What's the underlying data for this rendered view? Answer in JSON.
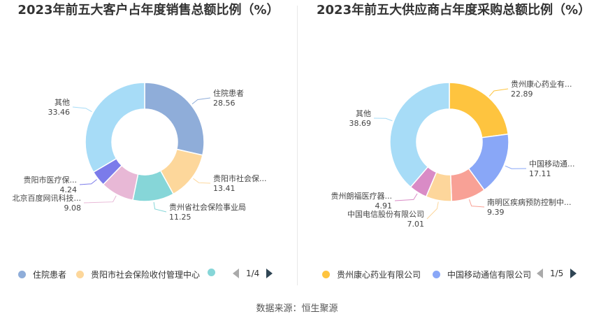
{
  "source_text": "数据来源：恒生聚源",
  "chart_data": [
    {
      "type": "pie",
      "title": "2023年前五大客户占年度销售总额比例（%）",
      "slices": [
        {
          "label": "住院患者",
          "value": 28.56,
          "color": "#8fadd9"
        },
        {
          "label": "贵阳市社会保...",
          "value": 13.41,
          "color": "#fdd79b"
        },
        {
          "label": "贵州省社会保险事业局",
          "value": 11.25,
          "color": "#86d6d8"
        },
        {
          "label": "北京百度网讯科技...",
          "value": 9.08,
          "color": "#e8b8d6"
        },
        {
          "label": "贵阳市医疗保...",
          "value": 4.24,
          "color": "#7b7bea"
        },
        {
          "label": "其他",
          "value": 33.46,
          "color": "#a7dcf7"
        }
      ],
      "legend": {
        "items": [
          {
            "label": "住院患者",
            "color": "#8fadd9"
          },
          {
            "label": "贵阳市社会保险收付管理中心",
            "color": "#fdd79b"
          },
          {
            "label": "",
            "color": "#86d6d8"
          }
        ],
        "page": "1/4"
      }
    },
    {
      "type": "pie",
      "title": "2023年前五大供应商占年度采购总额比例（%）",
      "slices": [
        {
          "label": "贵州康心药业有...",
          "value": 22.89,
          "color": "#fec43f"
        },
        {
          "label": "中国移动通...",
          "value": 17.11,
          "color": "#89a7f7"
        },
        {
          "label": "南明区疾病预防控制中...",
          "value": 9.39,
          "color": "#f8a196"
        },
        {
          "label": "中国电信股份有限公司",
          "value": 7.01,
          "color": "#fdd69b"
        },
        {
          "label": "贵州朗福医疗器...",
          "value": 4.91,
          "color": "#d98bc6"
        },
        {
          "label": "其他",
          "value": 38.69,
          "color": "#a7dcf7"
        }
      ],
      "legend": {
        "items": [
          {
            "label": "贵州康心药业有限公司",
            "color": "#fec43f"
          },
          {
            "label": "中国移动通信有限公司",
            "color": "#89a7f7"
          }
        ],
        "page": "1/5"
      }
    }
  ]
}
